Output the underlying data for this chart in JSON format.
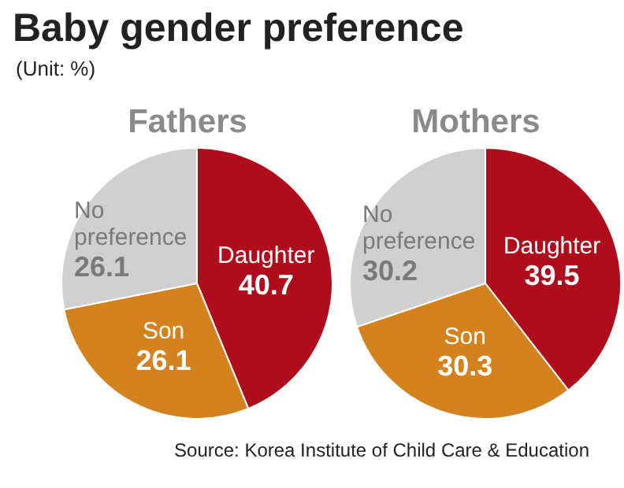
{
  "chart_data": [
    {
      "type": "other",
      "title": "Baby gender preference",
      "subtitle": "(Unit: %)",
      "annotations": [
        "Source: Korea Institute of Child Care & Education"
      ]
    },
    {
      "type": "pie",
      "title": "Fathers",
      "categories": [
        "Daughter",
        "Son",
        "No preference"
      ],
      "values": [
        40.7,
        26.1,
        26.1
      ],
      "colors": [
        "#b00d1c",
        "#d4821e",
        "#d0d0d0"
      ],
      "data_labels": true
    },
    {
      "type": "pie",
      "title": "Mothers",
      "categories": [
        "Daughter",
        "Son",
        "No preference"
      ],
      "values": [
        39.5,
        30.3,
        30.2
      ],
      "colors": [
        "#b00d1c",
        "#d4821e",
        "#d0d0d0"
      ],
      "data_labels": true
    }
  ]
}
